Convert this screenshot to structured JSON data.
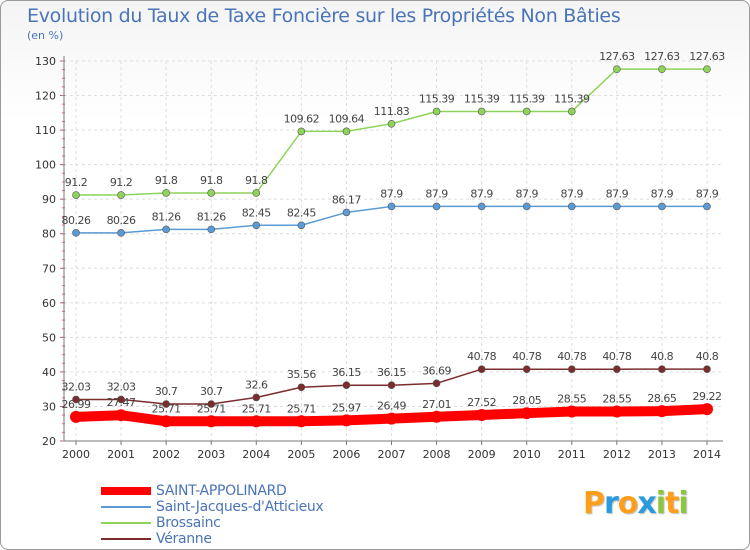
{
  "chart_data": {
    "type": "line",
    "title": "Evolution du Taux de Taxe Foncière sur les Propriétés Non Bâties",
    "subtitle": "(en %)",
    "x": [
      "2000",
      "2001",
      "2002",
      "2003",
      "2004",
      "2005",
      "2006",
      "2007",
      "2008",
      "2009",
      "2010",
      "2011",
      "2012",
      "2013",
      "2014"
    ],
    "ylim": [
      20,
      130
    ],
    "yticks": [
      "20",
      "30",
      "40",
      "50",
      "60",
      "70",
      "80",
      "90",
      "100",
      "110",
      "120",
      "130"
    ],
    "grid": true,
    "legend_position": "bottom-left",
    "series": [
      {
        "name": "SAINT-APPOLINARD",
        "color": "#ff0000",
        "values": [
          26.99,
          27.47,
          25.71,
          25.71,
          25.71,
          25.71,
          25.97,
          26.49,
          27.01,
          27.52,
          28.05,
          28.55,
          28.55,
          28.65,
          29.22
        ],
        "labels": [
          "26.99",
          "27.47",
          "25.71",
          "25.71",
          "25.71",
          "25.71",
          "25.97",
          "26.49",
          "27.01",
          "27.52",
          "28.05",
          "28.55",
          "28.55",
          "28.65",
          "29.22"
        ]
      },
      {
        "name": "Saint-Jacques-d'Atticieux",
        "color": "#5b9bd5",
        "values": [
          80.26,
          80.26,
          81.26,
          81.26,
          82.45,
          82.45,
          86.17,
          87.9,
          87.9,
          87.9,
          87.9,
          87.9,
          87.9,
          87.9,
          87.9
        ],
        "labels": [
          "80.26",
          "80.26",
          "81.26",
          "81.26",
          "82.45",
          "82.45",
          "86.17",
          "87.9",
          "87.9",
          "87.9",
          "87.9",
          "87.9",
          "87.9",
          "87.9",
          "87.9"
        ]
      },
      {
        "name": "Brossainc",
        "color": "#8fd45a",
        "values": [
          91.2,
          91.2,
          91.8,
          91.8,
          91.8,
          109.62,
          109.64,
          111.83,
          115.39,
          115.39,
          115.39,
          115.39,
          127.63,
          127.63,
          127.63
        ],
        "labels": [
          "91.2",
          "91.2",
          "91.8",
          "91.8",
          "91.8",
          "109.62",
          "109.64",
          "111.83",
          "115.39",
          "115.39",
          "115.39",
          "115.39",
          "127.63",
          "127.63",
          "127.63"
        ]
      },
      {
        "name": "Véranne",
        "color": "#7b2c2c",
        "values": [
          32.03,
          32.03,
          30.7,
          30.7,
          32.6,
          35.56,
          36.15,
          36.15,
          36.69,
          40.78,
          40.78,
          40.78,
          40.78,
          40.8,
          40.8
        ],
        "labels": [
          "32.03",
          "32.03",
          "30.7",
          "30.7",
          "32.6",
          "35.56",
          "36.15",
          "36.15",
          "36.69",
          "40.78",
          "40.78",
          "40.78",
          "40.78",
          "40.8",
          "40.8"
        ]
      }
    ]
  },
  "logo": {
    "letters": [
      "P",
      "r",
      "o",
      "x",
      "i",
      "t",
      "i"
    ],
    "colors": [
      "#ff9e1b",
      "#2b9be0",
      "#ff9e1b",
      "#2b9be0",
      "#8cc63f",
      "#ff9e1b",
      "#8cc63f"
    ]
  }
}
